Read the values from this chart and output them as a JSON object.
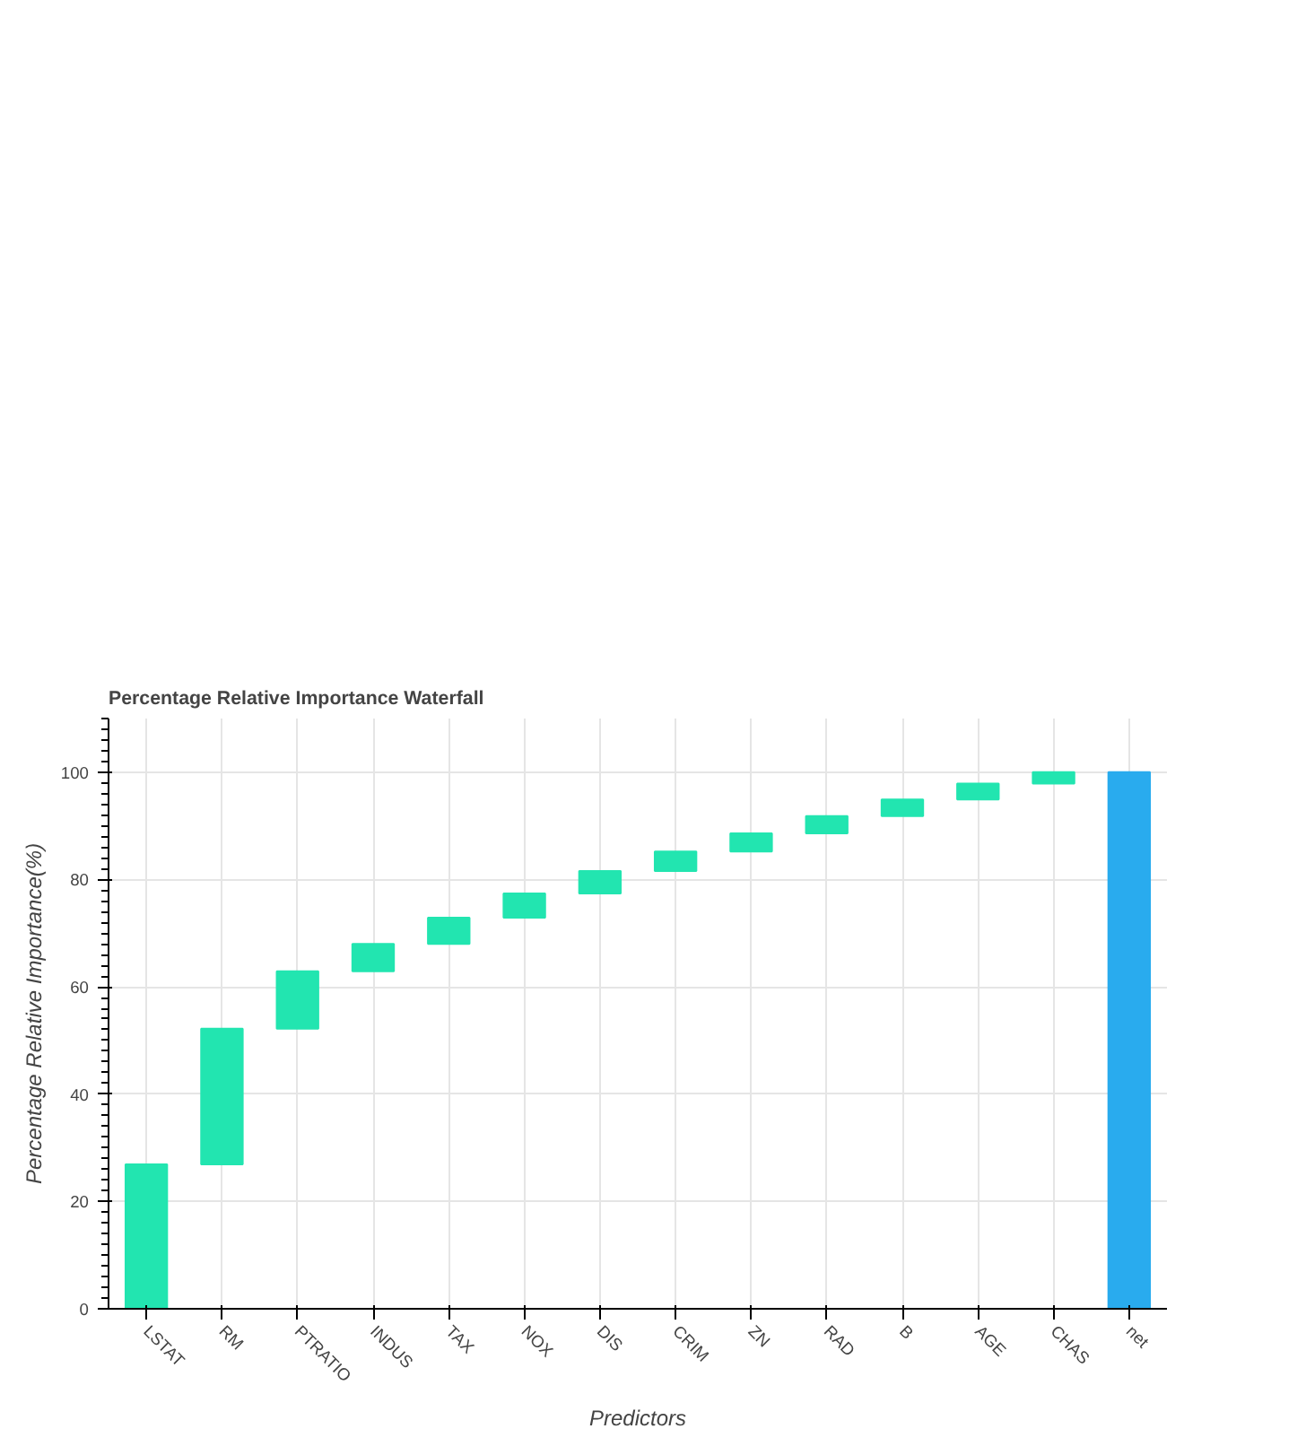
{
  "chart_data": {
    "type": "bar",
    "title": "Percentage Relative Importance Waterfall",
    "xlabel": "Predictors",
    "ylabel": "Percentage Relative Importance(%)",
    "categories": [
      "LSTAT",
      "RM",
      "PTRATIO",
      "INDUS",
      "TAX",
      "NOX",
      "DIS",
      "CRIM",
      "ZN",
      "RAD",
      "B",
      "AGE",
      "CHAS",
      "net"
    ],
    "values": [
      26.9,
      25.3,
      10.7,
      5.1,
      4.9,
      4.5,
      4.2,
      3.6,
      3.4,
      3.2,
      3.1,
      3.0,
      2.1,
      100
    ],
    "base": [
      0,
      26.9,
      52.2,
      62.9,
      68.0,
      72.9,
      77.4,
      81.6,
      85.2,
      88.6,
      91.8,
      94.9,
      97.9,
      0
    ],
    "colors": [
      "#22e5b0",
      "#22e5b0",
      "#22e5b0",
      "#22e5b0",
      "#22e5b0",
      "#22e5b0",
      "#22e5b0",
      "#22e5b0",
      "#22e5b0",
      "#22e5b0",
      "#22e5b0",
      "#22e5b0",
      "#22e5b0",
      "#29abee"
    ],
    "ylim": [
      0,
      110
    ],
    "yticks": [
      0,
      20,
      40,
      60,
      80,
      100
    ],
    "grid": true
  }
}
